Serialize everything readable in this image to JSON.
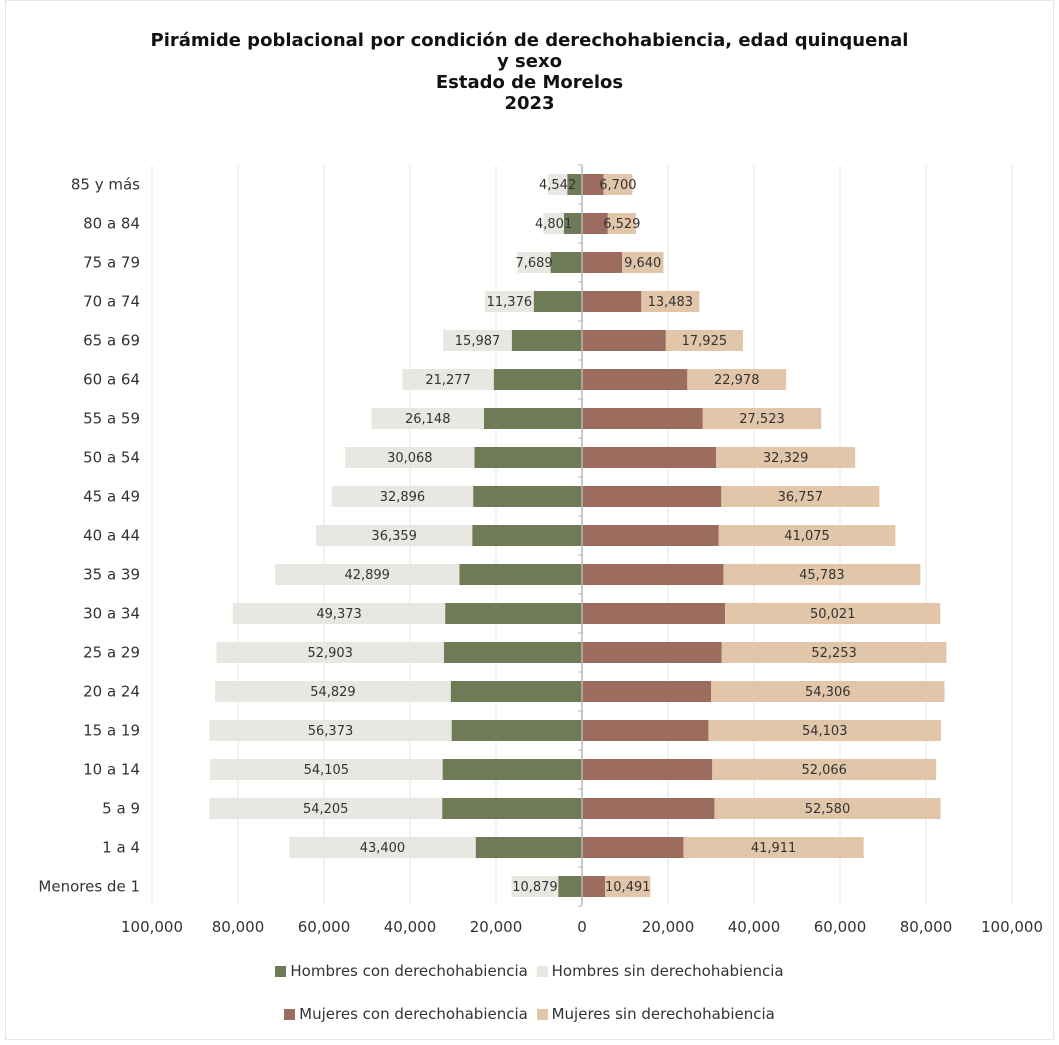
{
  "chart_data": {
    "type": "bar",
    "title_lines": [
      "Pirámide poblacional por condición de derechohabiencia, edad quinquenal",
      "y sexo",
      "Estado de Morelos",
      "2023"
    ],
    "categories": [
      "85 y más",
      "80 a 84",
      "75 a 79",
      "70 a 74",
      "65 a 69",
      "60 a 64",
      "55 a 59",
      "50 a 54",
      "45 a 49",
      "40 a 44",
      "35 a 39",
      "30 a 34",
      "25 a 29",
      "20 a 24",
      "15 a 19",
      "10 a 14",
      "5 a 9",
      "1 a 4",
      "Menores de 1"
    ],
    "series": [
      {
        "name": "Hombres con derechohabiencia",
        "color": "#6e7b56",
        "side": "left",
        "values": [
          3400,
          4200,
          7300,
          11200,
          16300,
          20500,
          22800,
          25000,
          25300,
          25500,
          28500,
          31800,
          32100,
          30500,
          30300,
          32400,
          32500,
          24700,
          5500
        ]
      },
      {
        "name": "Hombres sin derechohabiencia",
        "color": "#e8e7e1",
        "side": "left",
        "values": [
          4542,
          4801,
          7689,
          11376,
          15987,
          21277,
          26148,
          30068,
          32896,
          36359,
          42899,
          49373,
          52903,
          54829,
          56373,
          54105,
          54205,
          43400,
          10879
        ]
      },
      {
        "name": "Mujeres con derechohabiencia",
        "color": "#9c6d5e",
        "side": "right",
        "values": [
          5000,
          6000,
          9300,
          13800,
          19500,
          24500,
          28100,
          31200,
          32400,
          31800,
          32900,
          33300,
          32500,
          30000,
          29400,
          30300,
          30800,
          23600,
          5400
        ]
      },
      {
        "name": "Mujeres sin derechohabiencia",
        "color": "#e2c6a9",
        "side": "right",
        "values": [
          6700,
          6529,
          9640,
          13483,
          17925,
          22978,
          27523,
          32329,
          36757,
          41075,
          45783,
          50021,
          52253,
          54306,
          54103,
          52066,
          52580,
          41911,
          10491
        ]
      }
    ],
    "data_labels": {
      "left": [
        "4,542",
        "4,801",
        "7,689",
        "11,376",
        "15,987",
        "21,277",
        "26,148",
        "30,068",
        "32,896",
        "36,359",
        "42,899",
        "49,373",
        "52,903",
        "54,829",
        "56,373",
        "54,105",
        "54,205",
        "43,400",
        "10,879"
      ],
      "right": [
        "6,700",
        "6,529",
        "9,640",
        "13,483",
        "17,925",
        "22,978",
        "27,523",
        "32,329",
        "36,757",
        "41,075",
        "45,783",
        "50,021",
        "52,253",
        "54,306",
        "54,103",
        "52,066",
        "52,580",
        "41,911",
        "10,491"
      ]
    },
    "x_ticks": [
      "100,000",
      "80,000",
      "60,000",
      "40,000",
      "20,000",
      "0",
      "20,000",
      "40,000",
      "60,000",
      "80,000",
      "100,000"
    ],
    "x_tick_values": [
      -100000,
      -80000,
      -60000,
      -40000,
      -20000,
      0,
      20000,
      40000,
      60000,
      80000,
      100000
    ],
    "xlim": [
      -100000,
      100000
    ],
    "grid": true,
    "legend_placement": "bottom"
  }
}
